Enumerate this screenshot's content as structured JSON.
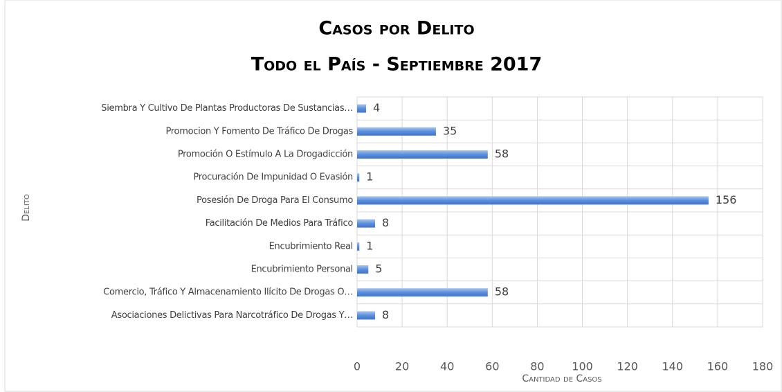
{
  "chart_data": {
    "type": "bar",
    "orientation": "horizontal",
    "title": "Casos por Delito",
    "subtitle": "Todo el País - Septiembre 2017",
    "y_label": "Delito",
    "x_label": "Cantidad de Casos",
    "categories": [
      "Siembra Y Cultivo De Plantas Productoras De Sustancias…",
      "Promocion Y Fomento De Tráfico De Drogas",
      "Promoción O Estímulo A La Drogadicción",
      "Procuración De Impunidad O Evasión",
      "Posesión De Droga Para El Consumo",
      "Facilitación De Medios Para Tráfico",
      "Encubrimiento Real",
      "Encubrimiento Personal",
      "Comercio, Tráfico Y Almacenamiento Ilícito De Drogas O…",
      "Asociaciones Delictivas Para Narcotráfico De Drogas Y…"
    ],
    "values": [
      4,
      35,
      58,
      1,
      156,
      8,
      1,
      5,
      58,
      8
    ],
    "color": "#5b8fdc",
    "xlim": [
      0,
      180
    ],
    "xticks": [
      0,
      20,
      40,
      60,
      80,
      100,
      120,
      140,
      160,
      180
    ],
    "grid": true
  }
}
